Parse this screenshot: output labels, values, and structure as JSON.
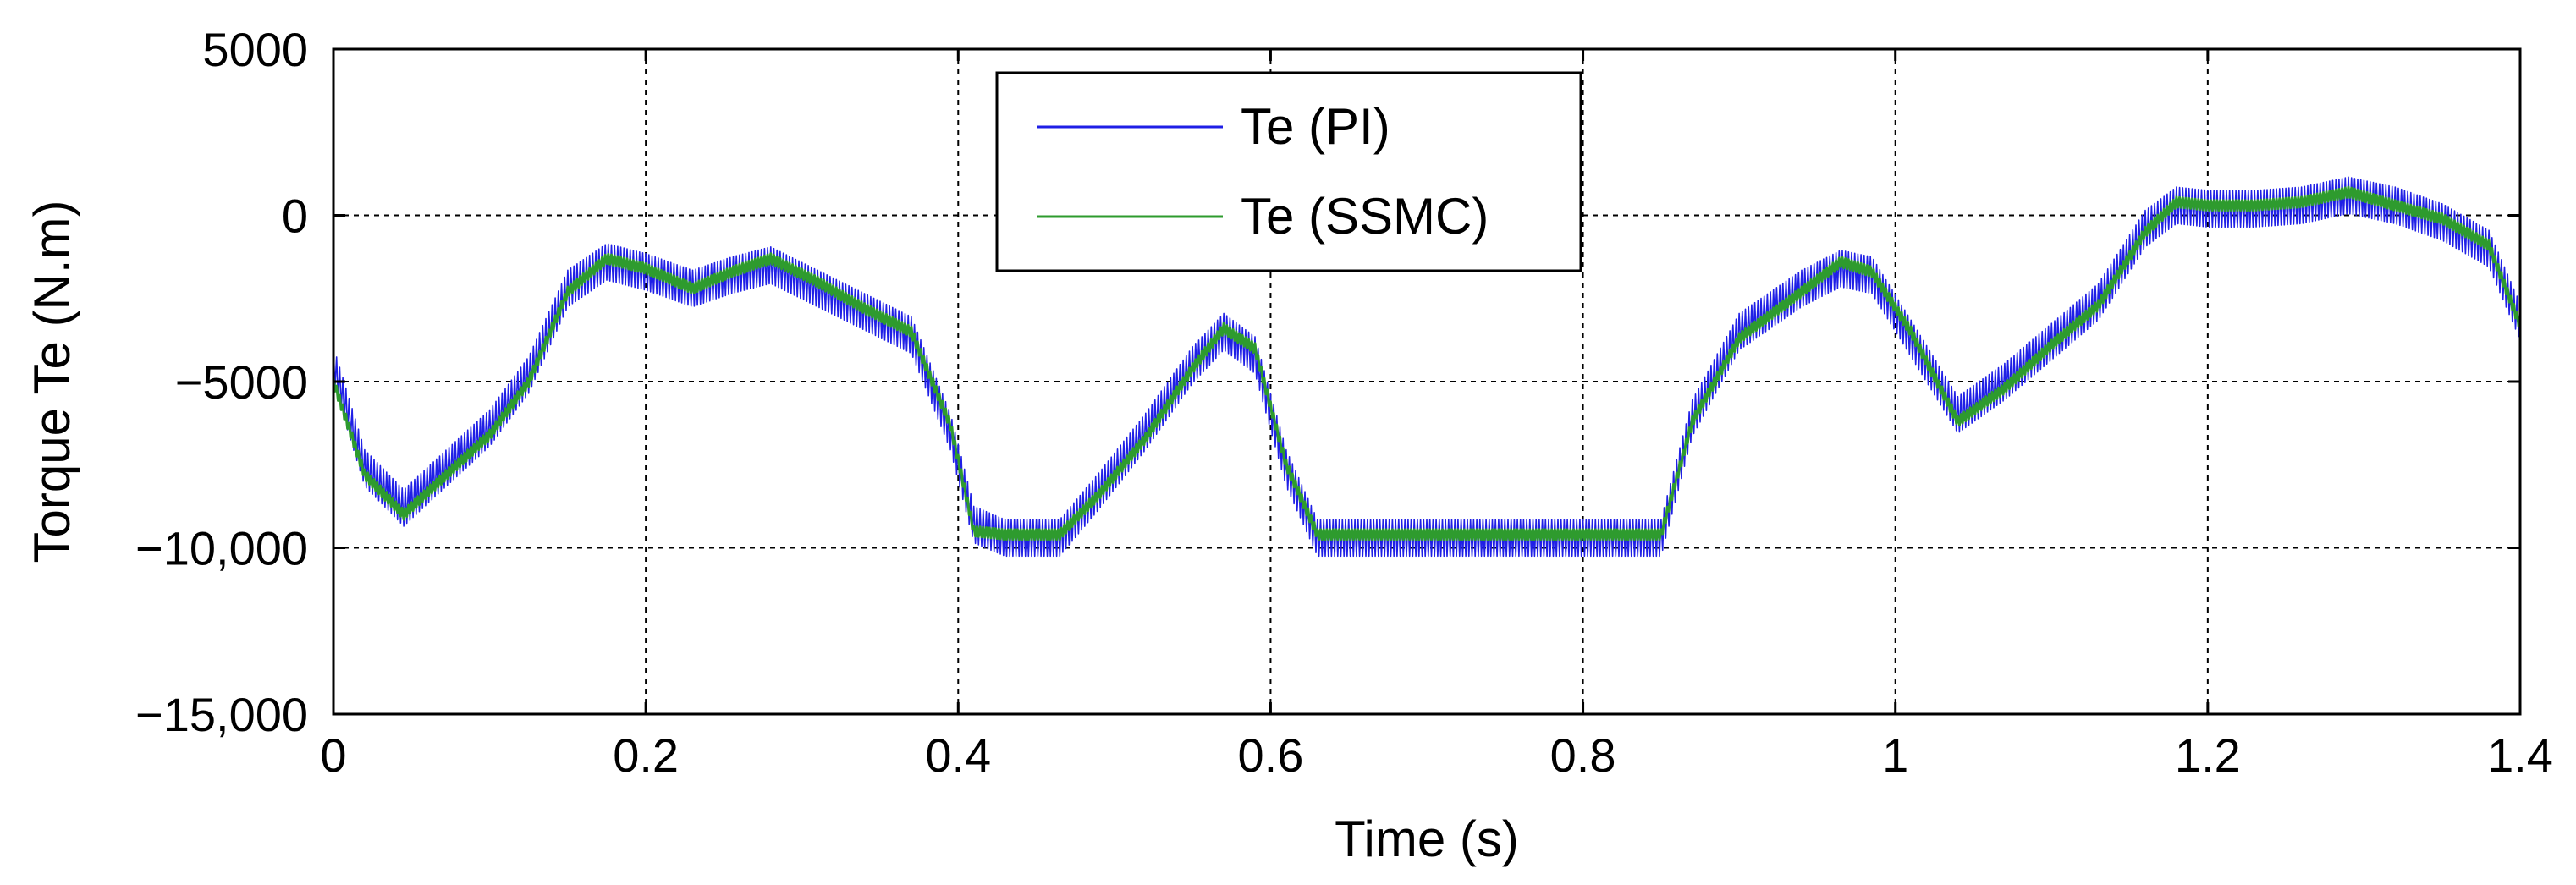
{
  "chart_data": {
    "type": "line",
    "title": "",
    "xlabel": "Time (s)",
    "ylabel": "Torque Te (N.m)",
    "xlim": [
      0,
      1.4
    ],
    "ylim": [
      -15000,
      5000
    ],
    "grid": true,
    "legend_location": "top-center",
    "x_ticks": [
      0,
      0.2,
      0.4,
      0.6,
      0.8,
      1.0,
      1.2,
      1.4
    ],
    "x_tick_labels": [
      "0",
      "0.2",
      "0.4",
      "0.6",
      "0.8",
      "1",
      "1.2",
      "1.4"
    ],
    "y_ticks": [
      5000,
      0,
      -5000,
      -10000,
      -15000
    ],
    "y_tick_labels": [
      "5000",
      "0",
      "−5000",
      "−10,000",
      "−15,000"
    ],
    "series": [
      {
        "name": "Te (PI)",
        "color": "#1f1fe6",
        "ripple_amplitude": 550,
        "x": [
          0,
          0.02,
          0.045,
          0.07,
          0.1,
          0.125,
          0.15,
          0.175,
          0.2,
          0.23,
          0.255,
          0.28,
          0.31,
          0.34,
          0.37,
          0.395,
          0.41,
          0.43,
          0.465,
          0.49,
          0.52,
          0.55,
          0.57,
          0.59,
          0.61,
          0.63,
          0.7,
          0.8,
          0.85,
          0.87,
          0.9,
          0.94,
          0.965,
          0.985,
          1.01,
          1.04,
          1.07,
          1.1,
          1.13,
          1.16,
          1.18,
          1.2,
          1.23,
          1.26,
          1.29,
          1.32,
          1.35,
          1.38,
          1.4
        ],
        "y": [
          -4500,
          -7600,
          -8800,
          -7700,
          -6400,
          -4800,
          -2200,
          -1400,
          -1700,
          -2200,
          -1800,
          -1500,
          -2200,
          -2900,
          -3600,
          -6500,
          -9300,
          -9700,
          -9700,
          -8300,
          -6500,
          -4500,
          -3500,
          -4200,
          -7600,
          -9700,
          -9700,
          -9700,
          -9700,
          -6100,
          -3500,
          -2200,
          -1600,
          -1800,
          -3700,
          -6000,
          -5000,
          -3800,
          -2600,
          -400,
          300,
          200,
          200,
          300,
          600,
          300,
          -200,
          -1000,
          -3200
        ]
      },
      {
        "name": "Te (SSMC)",
        "color": "#2e9b2e",
        "ripple_amplitude": 150,
        "x": [
          0,
          0.02,
          0.045,
          0.07,
          0.1,
          0.125,
          0.15,
          0.175,
          0.2,
          0.23,
          0.255,
          0.28,
          0.31,
          0.34,
          0.37,
          0.395,
          0.41,
          0.43,
          0.465,
          0.49,
          0.52,
          0.55,
          0.57,
          0.59,
          0.61,
          0.63,
          0.7,
          0.8,
          0.85,
          0.87,
          0.9,
          0.94,
          0.965,
          0.985,
          1.01,
          1.04,
          1.07,
          1.1,
          1.13,
          1.16,
          1.18,
          1.2,
          1.23,
          1.26,
          1.29,
          1.32,
          1.35,
          1.38,
          1.4
        ],
        "y": [
          -5000,
          -7800,
          -9000,
          -7900,
          -6600,
          -5000,
          -2300,
          -1300,
          -1600,
          -2200,
          -1700,
          -1300,
          -2000,
          -2800,
          -3500,
          -6300,
          -9500,
          -9600,
          -9600,
          -8400,
          -6700,
          -4600,
          -3400,
          -4000,
          -7500,
          -9600,
          -9600,
          -9600,
          -9600,
          -6200,
          -3700,
          -2300,
          -1400,
          -1700,
          -3500,
          -6200,
          -5200,
          -3900,
          -2700,
          -500,
          400,
          300,
          300,
          400,
          700,
          300,
          -100,
          -900,
          -3300
        ]
      }
    ]
  }
}
